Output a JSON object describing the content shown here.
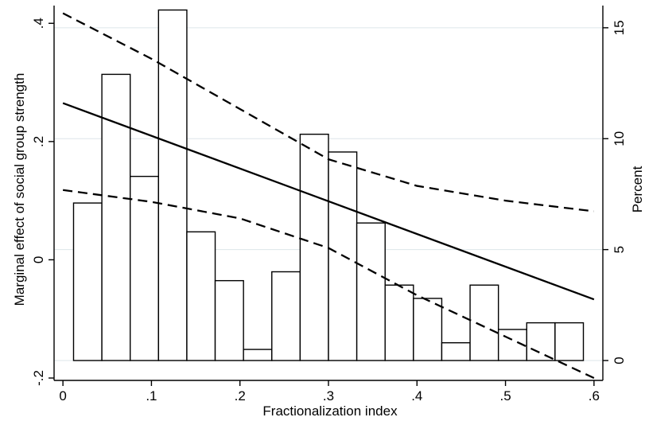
{
  "chart_data": {
    "type": "bar",
    "description_kind": "histogram with marginal effect line overlay",
    "xlabel": "Fractionalization index",
    "ylabel_left": "Marginal effect of social group strength",
    "ylabel_right": "Percent",
    "xlim": [
      -0.01,
      0.61
    ],
    "ylim_left": [
      -0.2,
      0.43
    ],
    "ylim_right": [
      0,
      16
    ],
    "x_ticks": [
      {
        "value": 0,
        "label": "0"
      },
      {
        "value": 0.1,
        "label": ".1"
      },
      {
        "value": 0.2,
        "label": ".2"
      },
      {
        "value": 0.3,
        "label": ".3"
      },
      {
        "value": 0.4,
        "label": ".4"
      },
      {
        "value": 0.5,
        "label": ".5"
      },
      {
        "value": 0.6,
        "label": ".6"
      }
    ],
    "y_ticks_left": [
      {
        "value": 0.4,
        "label": ".4"
      },
      {
        "value": 0.2,
        "label": ".2"
      },
      {
        "value": 0,
        "label": "0"
      },
      {
        "value": -0.2,
        "label": "-.2"
      }
    ],
    "y_ticks_right": [
      {
        "value": 15,
        "label": "15"
      },
      {
        "value": 10,
        "label": "10"
      },
      {
        "value": 5,
        "label": "5"
      },
      {
        "value": 0,
        "label": "0"
      }
    ],
    "grid": "horizontal at right-axis ticks",
    "histogram": {
      "bin_width": 0.032,
      "bins": [
        {
          "x_start": 0.012,
          "percent": 7.1
        },
        {
          "x_start": 0.044,
          "percent": 12.9
        },
        {
          "x_start": 0.076,
          "percent": 8.3
        },
        {
          "x_start": 0.108,
          "percent": 15.8
        },
        {
          "x_start": 0.14,
          "percent": 5.8
        },
        {
          "x_start": 0.172,
          "percent": 3.6
        },
        {
          "x_start": 0.204,
          "percent": 0.5
        },
        {
          "x_start": 0.236,
          "percent": 4.0
        },
        {
          "x_start": 0.268,
          "percent": 10.2
        },
        {
          "x_start": 0.3,
          "percent": 9.4
        },
        {
          "x_start": 0.332,
          "percent": 6.2
        },
        {
          "x_start": 0.364,
          "percent": 3.4
        },
        {
          "x_start": 0.396,
          "percent": 2.8
        },
        {
          "x_start": 0.428,
          "percent": 0.8
        },
        {
          "x_start": 0.46,
          "percent": 3.4
        },
        {
          "x_start": 0.492,
          "percent": 1.4
        },
        {
          "x_start": 0.524,
          "percent": 1.7
        },
        {
          "x_start": 0.556,
          "percent": 1.7
        }
      ]
    },
    "series": [
      {
        "style": "solid",
        "x": [
          0,
          0.6
        ],
        "y": [
          0.265,
          -0.067
        ]
      },
      {
        "style": "dashed",
        "x": [
          0,
          0.1,
          0.2,
          0.3,
          0.4,
          0.5,
          0.6
        ],
        "y": [
          0.417,
          0.34,
          0.255,
          0.17,
          0.125,
          0.1,
          0.082
        ]
      },
      {
        "style": "dashed",
        "x": [
          0,
          0.1,
          0.2,
          0.3,
          0.4,
          0.5,
          0.6
        ],
        "y": [
          0.118,
          0.098,
          0.07,
          0.02,
          -0.06,
          -0.13,
          -0.2
        ]
      }
    ]
  }
}
